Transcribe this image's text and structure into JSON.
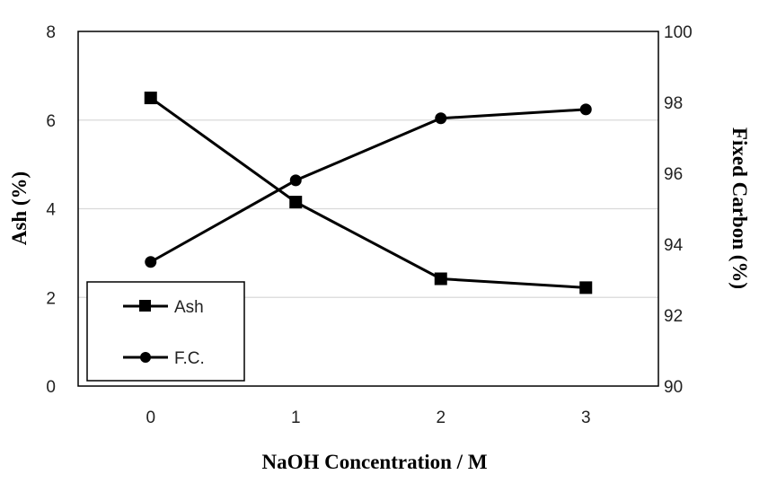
{
  "chart_data": {
    "type": "line",
    "title": "",
    "xlabel": "NaOH Concentration / M",
    "ylabel_left": "Ash (%)",
    "ylabel_right": "Fixed Carbon (%)",
    "x": [
      0,
      1,
      2,
      3
    ],
    "x_ticks": [
      "0",
      "1",
      "2",
      "3"
    ],
    "xlim": [
      -0.5,
      3.5
    ],
    "ylim_left": [
      0,
      8
    ],
    "ylim_right": [
      90,
      100
    ],
    "y_ticks_left": [
      "0",
      "2",
      "4",
      "6",
      "8"
    ],
    "y_ticks_right": [
      "90",
      "92",
      "94",
      "96",
      "98",
      "100"
    ],
    "grid": "horizontal",
    "legend_position": "bottom-left",
    "series": [
      {
        "name": "Ash",
        "axis": "left",
        "marker": "square",
        "values": [
          6.5,
          4.15,
          2.42,
          2.22
        ]
      },
      {
        "name": "F.C.",
        "axis": "right",
        "marker": "circle",
        "values": [
          93.5,
          95.8,
          97.55,
          97.8
        ]
      }
    ],
    "colors": {
      "line": "#000000",
      "grid": "#d9d9d9",
      "frame": "#000000"
    }
  }
}
